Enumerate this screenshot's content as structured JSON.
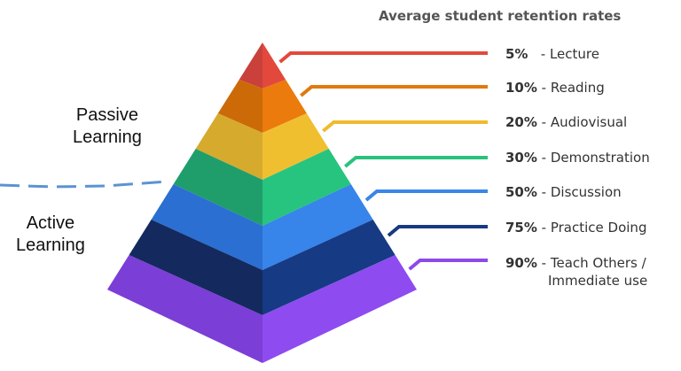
{
  "title": "Average student retention rates",
  "passive_label": {
    "line1": "Passive",
    "line2": "Learning"
  },
  "active_label": {
    "line1": "Active",
    "line2": "Learning"
  },
  "levels": [
    {
      "percent": "5%",
      "label": "Lecture",
      "label2": "",
      "color_left": "#c9413a",
      "color_right": "#e2493c",
      "line_color": "#e2493c"
    },
    {
      "percent": "10%",
      "label": "Reading",
      "label2": "",
      "color_left": "#cc6a08",
      "color_right": "#ea7b0c",
      "line_color": "#e07a0c"
    },
    {
      "percent": "20%",
      "label": "Audiovisual",
      "label2": "",
      "color_left": "#d6aa2c",
      "color_right": "#f0bf30",
      "line_color": "#efbb2e"
    },
    {
      "percent": "30%",
      "label": "Demonstration",
      "label2": "",
      "color_left": "#1f9e6b",
      "color_right": "#27c47f",
      "line_color": "#29c27c"
    },
    {
      "percent": "50%",
      "label": "Discussion",
      "label2": "",
      "color_left": "#2a6fd1",
      "color_right": "#3784ea",
      "line_color": "#3a86e8"
    },
    {
      "percent": "75%",
      "label": "Practice Doing",
      "label2": "",
      "color_left": "#14295e",
      "color_right": "#163a84",
      "line_color": "#183a80"
    },
    {
      "percent": "90%",
      "label": "Teach Others /",
      "label2": "Immediate use",
      "color_left": "#7b3ed6",
      "color_right": "#8e4bf0",
      "line_color": "#8c4ae8"
    }
  ],
  "divider_color": "#5b93d3"
}
